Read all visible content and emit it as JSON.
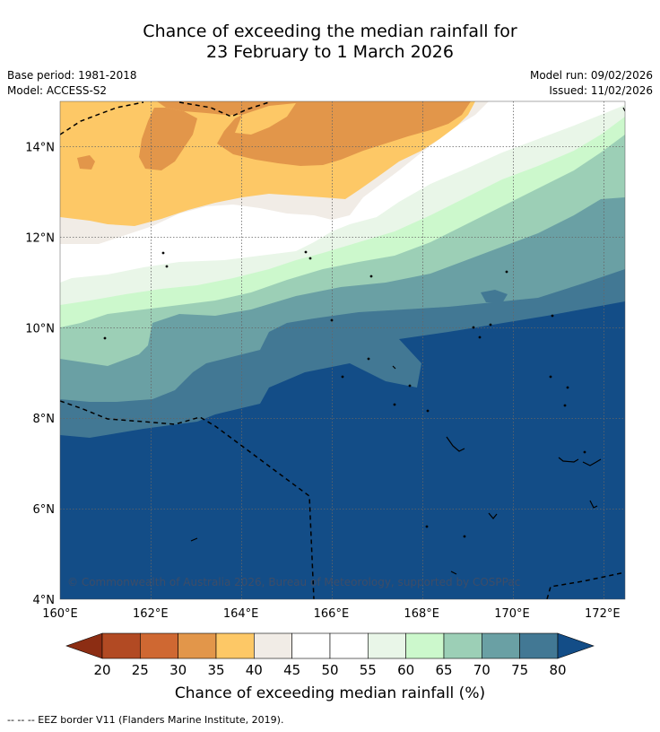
{
  "title": {
    "line1": "Chance of exceeding the median rainfall for",
    "line2": "23 February to 1 March 2026"
  },
  "info": {
    "base_period": "Base period: 1981-2018",
    "model": "Model: ACCESS-S2",
    "model_run": "Model run: 09/02/2026",
    "issued": "Issued: 11/02/2026"
  },
  "map": {
    "lon_ticks": [
      "160°E",
      "162°E",
      "164°E",
      "166°E",
      "168°E",
      "170°E",
      "172°E"
    ],
    "lat_ticks": [
      "4°N",
      "6°N",
      "8°N",
      "10°N",
      "12°N",
      "14°N"
    ],
    "lon_range": [
      160,
      172.5
    ],
    "lat_range": [
      4,
      15
    ],
    "copyright": "© Commonwealth of Australia 2026, Bureau of Meteorology, supported by COSPPac"
  },
  "colorbar": {
    "title": "Chance of exceeding median rainfall (%)",
    "labels": [
      "20",
      "25",
      "30",
      "35",
      "40",
      "45",
      "50",
      "55",
      "60",
      "65",
      "70",
      "75",
      "80"
    ],
    "colors": [
      "#8c2d13",
      "#b24a23",
      "#cf6832",
      "#e2964a",
      "#fdc866",
      "#f1ece6",
      "#ffffff",
      "#ffffff",
      "#e9f6e8",
      "#ccf8cc",
      "#9ccfb6",
      "#6aa0a4",
      "#427894",
      "#134d87"
    ]
  },
  "footer": {
    "eez_label": "-- -- -- EEZ border V11 (Flanders Marine Institute, 2019)."
  }
}
